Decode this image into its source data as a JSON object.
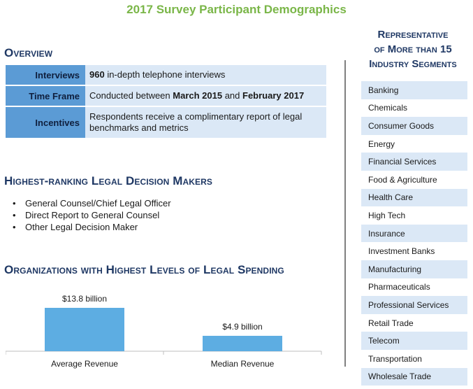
{
  "page_title": "2017 Survey Participant Demographics",
  "overview": {
    "heading": "Overview",
    "rows": [
      {
        "label": "Interviews",
        "value_bold": "960",
        "value_rest": " in-depth telephone interviews"
      },
      {
        "label": "Time Frame",
        "value_pre": "Conducted between ",
        "bold1": "March 2015",
        "mid": " and ",
        "bold2": "February 2017"
      },
      {
        "label": "Incentives",
        "value": "Respondents receive a complimentary report of legal benchmarks and metrics"
      }
    ]
  },
  "decision_makers": {
    "heading": "Highest-ranking Legal Decision Makers",
    "items": [
      "General Counsel/Chief  Legal Officer",
      "Direct Report to General Counsel",
      "Other Legal Decision Maker"
    ]
  },
  "spending": {
    "heading": "Organizations with Highest Levels of Legal Spending"
  },
  "chart_data": {
    "type": "bar",
    "categories": [
      "Average Revenue",
      "Median Revenue"
    ],
    "values": [
      13.8,
      4.9
    ],
    "data_labels": [
      "$13.8 billion",
      "$4.9 billion"
    ],
    "units": "billion",
    "ylim": [
      0,
      16
    ],
    "grid": false,
    "color": "#5dade2"
  },
  "industries": {
    "heading_lines": [
      "Representative",
      "of More than 15",
      "Industry Segments"
    ],
    "items": [
      "Banking",
      "Chemicals",
      "Consumer Goods",
      "Energy",
      "Financial Services",
      "Food & Agriculture",
      "Health Care",
      "High Tech",
      "Insurance",
      "Investment Banks",
      "Manufacturing",
      "Pharmaceuticals",
      "Professional Services",
      "Retail Trade",
      "Telecom",
      "Transportation",
      "Wholesale Trade"
    ]
  },
  "colors": {
    "title_green": "#7ab648",
    "heading_navy": "#1f3864",
    "label_blue": "#5b9bd5",
    "light_blue": "#dbe8f6"
  }
}
